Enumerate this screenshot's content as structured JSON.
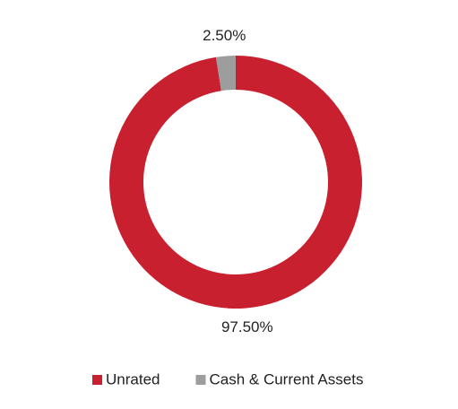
{
  "chart_data": {
    "type": "donut",
    "categories": [
      "Unrated",
      "Cash & Current Assets"
    ],
    "values": [
      97.5,
      2.5
    ],
    "value_labels": [
      "97.50%",
      "2.50%"
    ],
    "colors": [
      "#c8202f",
      "#9d9d9d"
    ]
  }
}
